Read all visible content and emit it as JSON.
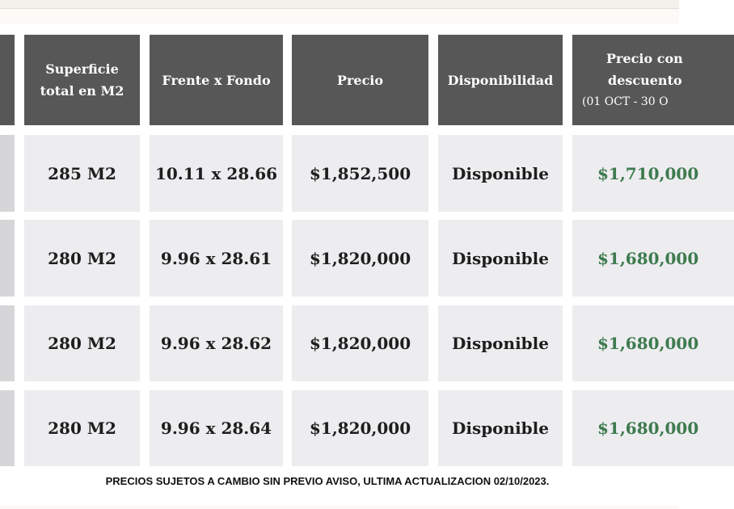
{
  "table": {
    "header": [
      [
        "Superficie",
        "total en M2"
      ],
      [
        "Frente x Fondo"
      ],
      [
        "Precio"
      ],
      [
        "Disponibilidad"
      ],
      [
        "Precio con",
        "descuento",
        "(01 OCT - 30 O"
      ]
    ],
    "rows": [
      [
        "285 M2",
        "10.11 x 28.66",
        "$1,852,500",
        "Disponible",
        "$1,710,000"
      ],
      [
        "280 M2",
        "9.96 x 28.61",
        "$1,820,000",
        "Disponible",
        "$1,680,000"
      ],
      [
        "280 M2",
        "9.96 x 28.62",
        "$1,820,000",
        "Disponible",
        "$1,680,000"
      ],
      [
        "280 M2",
        "9.96 x 28.64",
        "$1,820,000",
        "Disponible",
        "$1,680,000"
      ]
    ]
  },
  "footer": "PRECIOS SUJETOS A CAMBIO SIN PREVIO AVISO, ULTIMA ACTUALIZACION 02/10/2023."
}
